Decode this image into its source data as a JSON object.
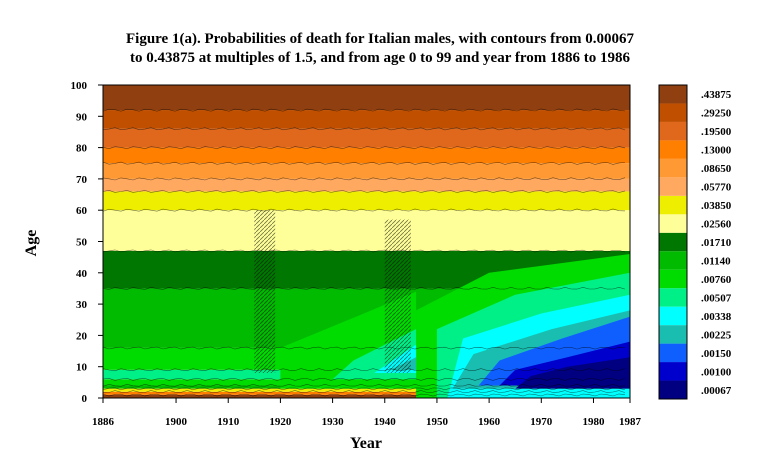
{
  "chart_data": {
    "type": "heatmap",
    "title_lines": [
      "Figure 1(a). Probabilities of death for Italian males, with contours from 0.00067",
      "to 0.43875 at multiples of 1.5, and from age 0 to 99 and year from 1886 to 1986"
    ],
    "xlabel": "Year",
    "ylabel": "Age",
    "xlim": [
      1886,
      1987
    ],
    "ylim": [
      0,
      100
    ],
    "x_ticks": [
      "1886",
      "1900",
      "1910",
      "1920",
      "1930",
      "1940",
      "1950",
      "1960",
      "1970",
      "1980",
      "1987"
    ],
    "x_tick_values": [
      1886,
      1900,
      1910,
      1920,
      1930,
      1940,
      1950,
      1960,
      1970,
      1980,
      1987
    ],
    "y_ticks": [
      "0",
      "10",
      "20",
      "30",
      "40",
      "50",
      "60",
      "70",
      "80",
      "90",
      "100"
    ],
    "y_tick_values": [
      0,
      10,
      20,
      30,
      40,
      50,
      60,
      70,
      80,
      90,
      100
    ],
    "legend_position": "right",
    "contour_levels": [
      {
        "label": ".00067",
        "color": "#000080"
      },
      {
        "label": ".00100",
        "color": "#0000cc"
      },
      {
        "label": ".00150",
        "color": "#0f5fff"
      },
      {
        "label": ".00225",
        "color": "#1abeb0"
      },
      {
        "label": ".00338",
        "color": "#00ffff"
      },
      {
        "label": ".00507",
        "color": "#00f088"
      },
      {
        "label": ".00760",
        "color": "#00dc00"
      },
      {
        "label": ".01140",
        "color": "#00bb00"
      },
      {
        "label": ".01710",
        "color": "#007700"
      },
      {
        "label": ".02560",
        "color": "#ffff99"
      },
      {
        "label": ".03850",
        "color": "#eeee00"
      },
      {
        "label": ".05770",
        "color": "#ffa860"
      },
      {
        "label": ".08650",
        "color": "#ff9933"
      },
      {
        "label": ".13000",
        "color": "#ff7f00"
      },
      {
        "label": ".19500",
        "color": "#e0681c"
      },
      {
        "label": ".29250",
        "color": "#c05000"
      },
      {
        "label": ".43875",
        "color": "#904010"
      }
    ],
    "bands_bottom_to_top": [
      {
        "level": 16,
        "age_lo": 0,
        "age_hi": 1
      },
      {
        "level": 13,
        "age_lo": 1,
        "age_hi": 2
      },
      {
        "level": 10,
        "age_lo": 2,
        "age_hi": 3
      },
      {
        "level": 7,
        "age_lo": 3,
        "age_hi": 4
      },
      {
        "level": 6,
        "age_lo": 4,
        "age_hi": 6
      },
      {
        "level": 5,
        "age_lo": 6,
        "age_hi": 9
      },
      {
        "level": 6,
        "age_lo": 9,
        "age_hi": 16
      },
      {
        "level": 7,
        "age_lo": 16,
        "age_hi": 35
      },
      {
        "level": 8,
        "age_lo": 35,
        "age_hi": 47
      },
      {
        "level": 9,
        "age_lo": 47,
        "age_hi": 60
      },
      {
        "level": 10,
        "age_lo": 60,
        "age_hi": 66
      },
      {
        "level": 11,
        "age_lo": 66,
        "age_hi": 70
      },
      {
        "level": 12,
        "age_lo": 70,
        "age_hi": 75
      },
      {
        "level": 13,
        "age_lo": 75,
        "age_hi": 80
      },
      {
        "level": 14,
        "age_lo": 80,
        "age_hi": 86
      },
      {
        "level": 15,
        "age_lo": 86,
        "age_hi": 92
      },
      {
        "level": 16,
        "age_lo": 92,
        "age_hi": 100
      }
    ],
    "low_mortality_regions": [
      {
        "level": 6,
        "points": [
          [
            1946,
            0
          ],
          [
            1987,
            0
          ],
          [
            1987,
            46
          ],
          [
            1960,
            40
          ],
          [
            1946,
            28
          ]
        ]
      },
      {
        "level": 5,
        "points": [
          [
            1950,
            0
          ],
          [
            1987,
            0
          ],
          [
            1987,
            40
          ],
          [
            1965,
            33
          ],
          [
            1950,
            22
          ]
        ]
      },
      {
        "level": 4,
        "points": [
          [
            1952,
            0
          ],
          [
            1987,
            0
          ],
          [
            1987,
            33
          ],
          [
            1970,
            27
          ],
          [
            1955,
            19
          ]
        ]
      },
      {
        "level": 3,
        "points": [
          [
            1953,
            3
          ],
          [
            1987,
            3
          ],
          [
            1987,
            28
          ],
          [
            1972,
            22
          ],
          [
            1957,
            14
          ]
        ]
      },
      {
        "level": 2,
        "points": [
          [
            1958,
            4
          ],
          [
            1987,
            4
          ],
          [
            1987,
            26
          ],
          [
            1974,
            19
          ],
          [
            1962,
            12
          ]
        ]
      },
      {
        "level": 1,
        "points": [
          [
            1962,
            4
          ],
          [
            1987,
            4
          ],
          [
            1987,
            18
          ],
          [
            1975,
            13
          ],
          [
            1965,
            9
          ]
        ]
      },
      {
        "level": 0,
        "points": [
          [
            1965,
            3
          ],
          [
            1987,
            3
          ],
          [
            1987,
            13
          ],
          [
            1975,
            10
          ],
          [
            1968,
            7
          ]
        ]
      },
      {
        "level": 6,
        "points": [
          [
            1920,
            3
          ],
          [
            1946,
            3
          ],
          [
            1946,
            34
          ],
          [
            1936,
            27
          ],
          [
            1920,
            16
          ]
        ]
      },
      {
        "level": 5,
        "points": [
          [
            1930,
            6
          ],
          [
            1946,
            6
          ],
          [
            1946,
            22
          ],
          [
            1934,
            12
          ]
        ]
      },
      {
        "level": 4,
        "points": [
          [
            1938,
            8
          ],
          [
            1946,
            8
          ],
          [
            1946,
            17
          ]
        ]
      },
      {
        "level": 3,
        "points": [
          [
            1941,
            9
          ],
          [
            1946,
            9
          ],
          [
            1946,
            13
          ]
        ]
      }
    ],
    "crisis_periods": [
      {
        "year_start": 1915,
        "year_end": 1919,
        "age_from": 8,
        "age_to": 60
      },
      {
        "year_start": 1940,
        "year_end": 1945,
        "age_from": 8,
        "age_to": 57
      }
    ]
  }
}
